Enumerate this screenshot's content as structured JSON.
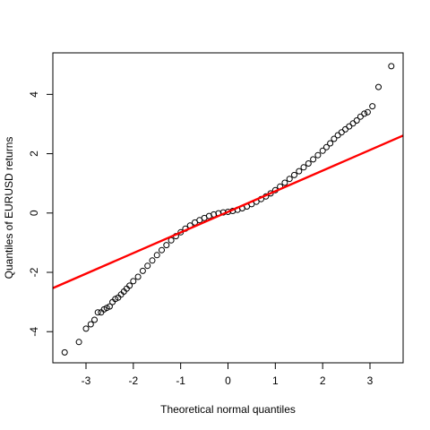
{
  "chart_data": {
    "type": "scatter",
    "title": "",
    "xlabel": "Theoretical normal quantiles",
    "ylabel": "Quantiles of EURUSD returns",
    "xlim": [
      -3.7,
      3.7
    ],
    "ylim": [
      -5.05,
      5.4
    ],
    "x_ticks": [
      -3,
      -2,
      -1,
      0,
      1,
      2,
      3
    ],
    "y_ticks": [
      -4,
      -2,
      0,
      2,
      4
    ],
    "x_tick_labels": [
      "-3",
      "-2",
      "-1",
      "0",
      "1",
      "2",
      "3"
    ],
    "y_tick_labels": [
      "-4",
      "-2",
      "0",
      "2",
      "4"
    ],
    "grid": false,
    "legend": "none",
    "reference_line": {
      "slope": 0.695,
      "intercept": 0.04,
      "color": "#ff0000"
    },
    "point_color": "#000000",
    "series": [
      {
        "points": [
          [
            -3.45,
            -4.7
          ],
          [
            -3.15,
            -4.35
          ],
          [
            -3.0,
            -3.9
          ],
          [
            -2.9,
            -3.75
          ],
          [
            -2.82,
            -3.6
          ],
          [
            -2.75,
            -3.35
          ],
          [
            -2.68,
            -3.35
          ],
          [
            -2.62,
            -3.25
          ],
          [
            -2.56,
            -3.2
          ],
          [
            -2.5,
            -3.15
          ],
          [
            -2.44,
            -3.0
          ],
          [
            -2.38,
            -2.9
          ],
          [
            -2.32,
            -2.85
          ],
          [
            -2.26,
            -2.75
          ],
          [
            -2.2,
            -2.65
          ],
          [
            -2.14,
            -2.55
          ],
          [
            -2.08,
            -2.45
          ],
          [
            -2.0,
            -2.3
          ],
          [
            -1.9,
            -2.15
          ],
          [
            -1.8,
            -1.95
          ],
          [
            -1.7,
            -1.78
          ],
          [
            -1.6,
            -1.6
          ],
          [
            -1.5,
            -1.42
          ],
          [
            -1.4,
            -1.25
          ],
          [
            -1.3,
            -1.08
          ],
          [
            -1.2,
            -0.92
          ],
          [
            -1.1,
            -0.78
          ],
          [
            -1.0,
            -0.65
          ],
          [
            -0.9,
            -0.53
          ],
          [
            -0.8,
            -0.42
          ],
          [
            -0.7,
            -0.32
          ],
          [
            -0.6,
            -0.24
          ],
          [
            -0.5,
            -0.17
          ],
          [
            -0.4,
            -0.1
          ],
          [
            -0.3,
            -0.05
          ],
          [
            -0.2,
            -0.01
          ],
          [
            -0.1,
            0.02
          ],
          [
            0.0,
            0.04
          ],
          [
            0.1,
            0.07
          ],
          [
            0.2,
            0.11
          ],
          [
            0.3,
            0.16
          ],
          [
            0.4,
            0.22
          ],
          [
            0.5,
            0.3
          ],
          [
            0.6,
            0.38
          ],
          [
            0.7,
            0.47
          ],
          [
            0.8,
            0.56
          ],
          [
            0.9,
            0.66
          ],
          [
            1.0,
            0.77
          ],
          [
            1.1,
            0.89
          ],
          [
            1.2,
            1.02
          ],
          [
            1.3,
            1.15
          ],
          [
            1.4,
            1.28
          ],
          [
            1.5,
            1.41
          ],
          [
            1.6,
            1.54
          ],
          [
            1.7,
            1.67
          ],
          [
            1.8,
            1.81
          ],
          [
            1.9,
            1.95
          ],
          [
            2.0,
            2.1
          ],
          [
            2.08,
            2.22
          ],
          [
            2.16,
            2.35
          ],
          [
            2.24,
            2.5
          ],
          [
            2.32,
            2.62
          ],
          [
            2.4,
            2.72
          ],
          [
            2.48,
            2.82
          ],
          [
            2.56,
            2.92
          ],
          [
            2.64,
            3.02
          ],
          [
            2.72,
            3.12
          ],
          [
            2.8,
            3.25
          ],
          [
            2.88,
            3.35
          ],
          [
            2.95,
            3.4
          ],
          [
            3.05,
            3.6
          ],
          [
            3.18,
            4.25
          ],
          [
            3.45,
            4.95
          ]
        ]
      }
    ]
  }
}
